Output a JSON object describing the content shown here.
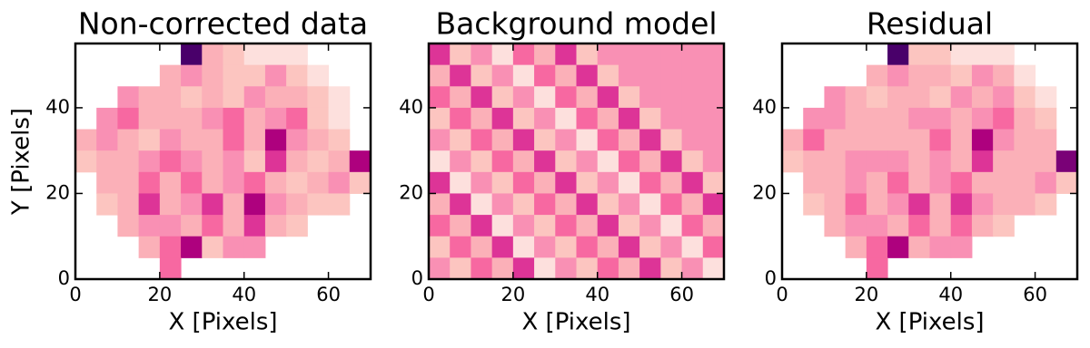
{
  "chart_data": [
    {
      "type": "heatmap",
      "title": "Non-corrected data",
      "xlabel": "X [Pixels]",
      "ylabel": "Y [Pixels]",
      "xlim": [
        0,
        70
      ],
      "ylim": [
        0,
        55
      ],
      "xticks": [
        0,
        20,
        40,
        60
      ],
      "yticks": [
        0,
        20,
        40
      ],
      "colormap": [
        "#fff5f3",
        "#fde0dd",
        "#fcc5c0",
        "#fbb0b8",
        "#f990b4",
        "#f768a1",
        "#dd3497",
        "#ae017e",
        "#7a0177",
        "#49006a"
      ],
      "values": [
        [
          null,
          null,
          null,
          null,
          null,
          9,
          3,
          2,
          1,
          1,
          1,
          null,
          null,
          null
        ],
        [
          null,
          null,
          null,
          null,
          3,
          4,
          3,
          2,
          2,
          4,
          2,
          1,
          null,
          null
        ],
        [
          null,
          null,
          4,
          3,
          3,
          2,
          3,
          2,
          4,
          3,
          3,
          2,
          1,
          null
        ],
        [
          null,
          4,
          5,
          3,
          3,
          3,
          4,
          5,
          3,
          4,
          5,
          2,
          1,
          null
        ],
        [
          3,
          4,
          3,
          2,
          4,
          3,
          3,
          5,
          3,
          7,
          4,
          3,
          2,
          null
        ],
        [
          2,
          3,
          3,
          4,
          5,
          4,
          3,
          4,
          2,
          6,
          3,
          2,
          3,
          7
        ],
        [
          null,
          3,
          3,
          5,
          3,
          5,
          3,
          4,
          5,
          3,
          2,
          3,
          4,
          2
        ],
        [
          null,
          2,
          3,
          6,
          3,
          4,
          6,
          3,
          7,
          4,
          3,
          2,
          2,
          null
        ],
        [
          null,
          null,
          3,
          4,
          4,
          3,
          5,
          3,
          6,
          3,
          2,
          null,
          null,
          null
        ],
        [
          null,
          null,
          null,
          3,
          5,
          7,
          2,
          4,
          4,
          null,
          null,
          null,
          null,
          null
        ],
        [
          null,
          null,
          null,
          null,
          5,
          null,
          null,
          null,
          null,
          null,
          null,
          null,
          null,
          null
        ]
      ]
    },
    {
      "type": "heatmap",
      "title": "Background model",
      "xlabel": "X [Pixels]",
      "xlim": [
        0,
        70
      ],
      "ylim": [
        0,
        55
      ],
      "xticks": [
        0,
        20,
        40,
        60
      ],
      "yticks": [
        0,
        20,
        40
      ],
      "colormap": [
        "#fff5f3",
        "#fde0dd",
        "#fcc5c0",
        "#fbb0b8",
        "#f990b4",
        "#f768a1",
        "#dd3497",
        "#ae017e",
        "#7a0177",
        "#49006a"
      ],
      "values": [
        [
          6,
          2,
          4,
          1,
          5,
          3,
          6,
          2,
          4,
          4,
          4,
          4,
          4,
          4
        ],
        [
          3,
          6,
          2,
          4,
          1,
          5,
          3,
          6,
          2,
          4,
          4,
          4,
          4,
          4
        ],
        [
          5,
          3,
          6,
          2,
          4,
          1,
          5,
          3,
          6,
          2,
          4,
          4,
          4,
          4
        ],
        [
          2,
          5,
          3,
          6,
          2,
          4,
          1,
          5,
          3,
          6,
          2,
          4,
          4,
          4
        ],
        [
          4,
          2,
          5,
          3,
          6,
          2,
          4,
          1,
          5,
          3,
          6,
          2,
          4,
          4
        ],
        [
          1,
          4,
          2,
          5,
          3,
          6,
          2,
          4,
          1,
          5,
          3,
          6,
          2,
          4
        ],
        [
          6,
          1,
          4,
          2,
          5,
          3,
          6,
          2,
          4,
          1,
          5,
          3,
          6,
          2
        ],
        [
          3,
          6,
          1,
          4,
          2,
          5,
          3,
          6,
          2,
          4,
          1,
          5,
          3,
          6
        ],
        [
          5,
          3,
          6,
          1,
          4,
          2,
          5,
          3,
          6,
          2,
          4,
          1,
          5,
          3
        ],
        [
          2,
          5,
          3,
          6,
          1,
          4,
          2,
          5,
          3,
          6,
          2,
          4,
          1,
          5
        ],
        [
          4,
          2,
          5,
          3,
          6,
          1,
          4,
          2,
          5,
          3,
          6,
          2,
          4,
          1
        ]
      ]
    },
    {
      "type": "heatmap",
      "title": "Residual",
      "xlabel": "X [Pixels]",
      "xlim": [
        0,
        70
      ],
      "ylim": [
        0,
        55
      ],
      "xticks": [
        0,
        20,
        40,
        60
      ],
      "yticks": [
        0,
        20,
        40
      ],
      "colormap": [
        "#fff5f3",
        "#fde0dd",
        "#fcc5c0",
        "#fbb0b8",
        "#f990b4",
        "#f768a1",
        "#dd3497",
        "#ae017e",
        "#7a0177",
        "#49006a"
      ],
      "values": [
        [
          null,
          null,
          null,
          null,
          null,
          9,
          2,
          2,
          1,
          1,
          1,
          null,
          null,
          null
        ],
        [
          null,
          null,
          null,
          null,
          3,
          4,
          3,
          3,
          2,
          4,
          3,
          1,
          null,
          null
        ],
        [
          null,
          null,
          4,
          3,
          2,
          3,
          3,
          2,
          4,
          3,
          4,
          2,
          1,
          null
        ],
        [
          null,
          4,
          4,
          3,
          3,
          3,
          4,
          4,
          3,
          4,
          5,
          3,
          2,
          null
        ],
        [
          3,
          5,
          3,
          3,
          3,
          3,
          3,
          5,
          3,
          7,
          4,
          3,
          3,
          null
        ],
        [
          2,
          3,
          3,
          4,
          4,
          4,
          3,
          4,
          3,
          6,
          3,
          3,
          3,
          8
        ],
        [
          null,
          3,
          3,
          4,
          3,
          5,
          3,
          4,
          5,
          3,
          3,
          3,
          4,
          2
        ],
        [
          null,
          2,
          3,
          5,
          3,
          4,
          6,
          3,
          6,
          4,
          3,
          3,
          2,
          null
        ],
        [
          null,
          null,
          3,
          4,
          4,
          3,
          5,
          3,
          5,
          3,
          2,
          null,
          null,
          null
        ],
        [
          null,
          null,
          null,
          3,
          5,
          7,
          3,
          4,
          4,
          null,
          null,
          null,
          null,
          null
        ],
        [
          null,
          null,
          null,
          null,
          5,
          null,
          null,
          null,
          null,
          null,
          null,
          null,
          null,
          null
        ]
      ]
    }
  ]
}
